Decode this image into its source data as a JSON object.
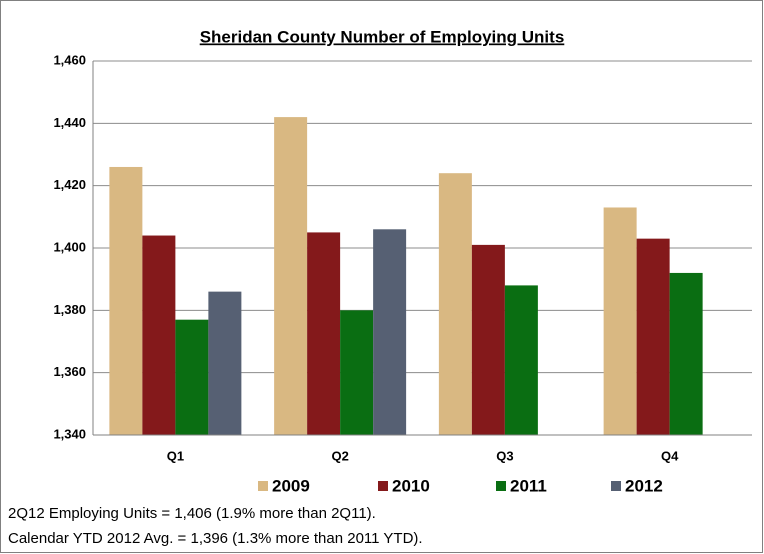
{
  "chart_data": {
    "type": "bar",
    "title": "Sheridan County Number of Employing Units",
    "categories": [
      "Q1",
      "Q2",
      "Q3",
      "Q4"
    ],
    "series": [
      {
        "name": "2009",
        "color": "#d9b882",
        "values": [
          1426,
          1442,
          1424,
          1413
        ]
      },
      {
        "name": "2010",
        "color": "#84191b",
        "values": [
          1404,
          1405,
          1401,
          1403
        ]
      },
      {
        "name": "2011",
        "color": "#0a6e12",
        "values": [
          1377,
          1380,
          1388,
          1392
        ]
      },
      {
        "name": "2012",
        "color": "#566073",
        "values": [
          1386,
          1406,
          null,
          null
        ]
      }
    ],
    "ylim": [
      1340,
      1460
    ],
    "yticks": [
      {
        "value": 1340,
        "label": "1,340"
      },
      {
        "value": 1360,
        "label": "1,360"
      },
      {
        "value": 1380,
        "label": "1,380"
      },
      {
        "value": 1400,
        "label": "1,400"
      },
      {
        "value": 1420,
        "label": "1,420"
      },
      {
        "value": 1440,
        "label": "1,440"
      },
      {
        "value": 1460,
        "label": "1,460"
      }
    ],
    "grid": true,
    "legend": "bottom",
    "annotations": [
      "2Q12 Employing Units = 1,406 (1.9% more than 2Q11).",
      "Calendar YTD 2012 Avg. = 1,396 (1.3% more than 2011 YTD)."
    ]
  }
}
